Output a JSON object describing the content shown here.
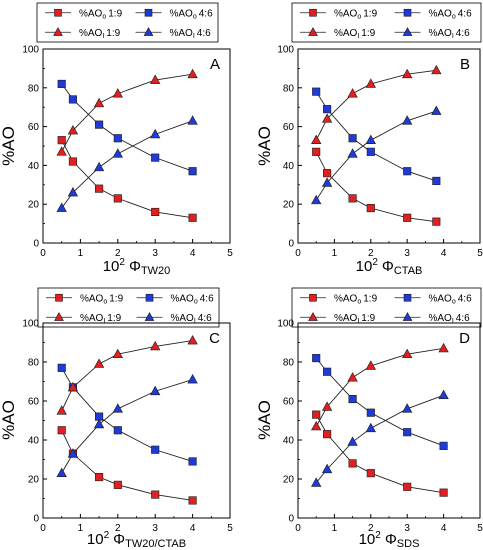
{
  "chart_data": [
    {
      "type": "line",
      "panel": "A",
      "xlabel": {
        "base": "10",
        "power": "2",
        "symbol": "Φ",
        "subscript": "TW20"
      },
      "ylabel": "%AO",
      "xlim": [
        0,
        5
      ],
      "ylim": [
        0,
        100
      ],
      "xticks": [
        0,
        1,
        2,
        3,
        4,
        5
      ],
      "yticks": [
        0,
        20,
        40,
        60,
        80,
        100
      ],
      "series": [
        {
          "name": {
            "prefix": "%AO",
            "sub": "o",
            "ratio": "1:9"
          },
          "color": "#e02020",
          "marker": "square",
          "x": [
            0.5,
            0.8,
            1.5,
            2.0,
            3.0,
            4.0
          ],
          "y": [
            53,
            42,
            28,
            23,
            16,
            13
          ]
        },
        {
          "name": {
            "prefix": "%AO",
            "sub": "o",
            "ratio": "4:6"
          },
          "color": "#1f3bd6",
          "marker": "square",
          "x": [
            0.5,
            0.8,
            1.5,
            2.0,
            3.0,
            4.0
          ],
          "y": [
            82,
            74,
            61,
            54,
            44,
            37
          ]
        },
        {
          "name": {
            "prefix": "%AO",
            "sub": "I",
            "ratio": "1:9"
          },
          "color": "#e02020",
          "marker": "triangle",
          "x": [
            0.5,
            0.8,
            1.5,
            2.0,
            3.0,
            4.0
          ],
          "y": [
            47,
            58,
            72,
            77,
            84,
            87
          ]
        },
        {
          "name": {
            "prefix": "%AO",
            "sub": "I",
            "ratio": "4:6"
          },
          "color": "#1f3bd6",
          "marker": "triangle",
          "x": [
            0.5,
            0.8,
            1.5,
            2.0,
            3.0,
            4.0
          ],
          "y": [
            18,
            26,
            39,
            46,
            56,
            63
          ]
        }
      ]
    },
    {
      "type": "line",
      "panel": "B",
      "xlabel": {
        "base": "10",
        "power": "2",
        "symbol": "Φ",
        "subscript": "CTAB"
      },
      "ylabel": "%AO",
      "xlim": [
        0,
        5
      ],
      "ylim": [
        0,
        100
      ],
      "xticks": [
        0,
        1,
        2,
        3,
        4,
        5
      ],
      "yticks": [
        0,
        20,
        40,
        60,
        80,
        100
      ],
      "series": [
        {
          "name": {
            "prefix": "%AO",
            "sub": "o",
            "ratio": "1:9"
          },
          "color": "#e02020",
          "marker": "square",
          "x": [
            0.5,
            0.8,
            1.5,
            2.0,
            3.0,
            3.8
          ],
          "y": [
            47,
            36,
            23,
            18,
            13,
            11
          ]
        },
        {
          "name": {
            "prefix": "%AO",
            "sub": "o",
            "ratio": "4:6"
          },
          "color": "#1f3bd6",
          "marker": "square",
          "x": [
            0.5,
            0.8,
            1.5,
            2.0,
            3.0,
            3.8
          ],
          "y": [
            78,
            69,
            54,
            47,
            37,
            32
          ]
        },
        {
          "name": {
            "prefix": "%AO",
            "sub": "I",
            "ratio": "1:9"
          },
          "color": "#e02020",
          "marker": "triangle",
          "x": [
            0.5,
            0.8,
            1.5,
            2.0,
            3.0,
            3.8
          ],
          "y": [
            53,
            64,
            77,
            82,
            87,
            89
          ]
        },
        {
          "name": {
            "prefix": "%AO",
            "sub": "I",
            "ratio": "4:6"
          },
          "color": "#1f3bd6",
          "marker": "triangle",
          "x": [
            0.5,
            0.8,
            1.5,
            2.0,
            3.0,
            3.8
          ],
          "y": [
            22,
            31,
            46,
            53,
            63,
            68
          ]
        }
      ]
    },
    {
      "type": "line",
      "panel": "C",
      "xlabel": {
        "base": "10",
        "power": "2",
        "symbol": "Φ",
        "subscript": "TW20/CTAB"
      },
      "ylabel": "%AO",
      "xlim": [
        0,
        5
      ],
      "ylim": [
        0,
        100
      ],
      "xticks": [
        0,
        1,
        2,
        3,
        4,
        5
      ],
      "yticks": [
        0,
        20,
        40,
        60,
        80,
        100
      ],
      "series": [
        {
          "name": {
            "prefix": "%AO",
            "sub": "o",
            "ratio": "1:9"
          },
          "color": "#e02020",
          "marker": "square",
          "x": [
            0.5,
            0.8,
            1.5,
            2.0,
            3.0,
            4.0
          ],
          "y": [
            45,
            33,
            21,
            17,
            12,
            9
          ]
        },
        {
          "name": {
            "prefix": "%AO",
            "sub": "o",
            "ratio": "4:6"
          },
          "color": "#1f3bd6",
          "marker": "square",
          "x": [
            0.5,
            0.8,
            1.5,
            2.0,
            3.0,
            4.0
          ],
          "y": [
            77,
            67,
            52,
            45,
            35,
            29
          ]
        },
        {
          "name": {
            "prefix": "%AO",
            "sub": "I",
            "ratio": "1:9"
          },
          "color": "#e02020",
          "marker": "triangle",
          "x": [
            0.5,
            0.8,
            1.5,
            2.0,
            3.0,
            4.0
          ],
          "y": [
            55,
            67,
            79,
            84,
            88,
            91
          ]
        },
        {
          "name": {
            "prefix": "%AO",
            "sub": "I",
            "ratio": "4:6"
          },
          "color": "#1f3bd6",
          "marker": "triangle",
          "x": [
            0.5,
            0.8,
            1.5,
            2.0,
            3.0,
            4.0
          ],
          "y": [
            23,
            33,
            48,
            56,
            65,
            71
          ]
        }
      ]
    },
    {
      "type": "line",
      "panel": "D",
      "xlabel": {
        "base": "10",
        "power": "2",
        "symbol": "Φ",
        "subscript": "SDS"
      },
      "ylabel": "%AO",
      "xlim": [
        0,
        5
      ],
      "ylim": [
        0,
        100
      ],
      "xticks": [
        0,
        1,
        2,
        3,
        4,
        5
      ],
      "yticks": [
        0,
        20,
        40,
        60,
        80,
        100
      ],
      "series": [
        {
          "name": {
            "prefix": "%AO",
            "sub": "o",
            "ratio": "1:9"
          },
          "color": "#e02020",
          "marker": "square",
          "x": [
            0.5,
            0.8,
            1.5,
            2.0,
            3.0,
            4.0
          ],
          "y": [
            53,
            43,
            28,
            23,
            16,
            13
          ]
        },
        {
          "name": {
            "prefix": "%AO",
            "sub": "o",
            "ratio": "4:6"
          },
          "color": "#1f3bd6",
          "marker": "square",
          "x": [
            0.5,
            0.8,
            1.5,
            2.0,
            3.0,
            4.0
          ],
          "y": [
            82,
            75,
            61,
            54,
            44,
            37
          ]
        },
        {
          "name": {
            "prefix": "%AO",
            "sub": "I",
            "ratio": "1:9"
          },
          "color": "#e02020",
          "marker": "triangle",
          "x": [
            0.5,
            0.8,
            1.5,
            2.0,
            3.0,
            4.0
          ],
          "y": [
            47,
            57,
            72,
            78,
            84,
            87
          ]
        },
        {
          "name": {
            "prefix": "%AO",
            "sub": "I",
            "ratio": "4:6"
          },
          "color": "#1f3bd6",
          "marker": "triangle",
          "x": [
            0.5,
            0.8,
            1.5,
            2.0,
            3.0,
            4.0
          ],
          "y": [
            18,
            25,
            39,
            46,
            56,
            63
          ]
        }
      ]
    }
  ]
}
